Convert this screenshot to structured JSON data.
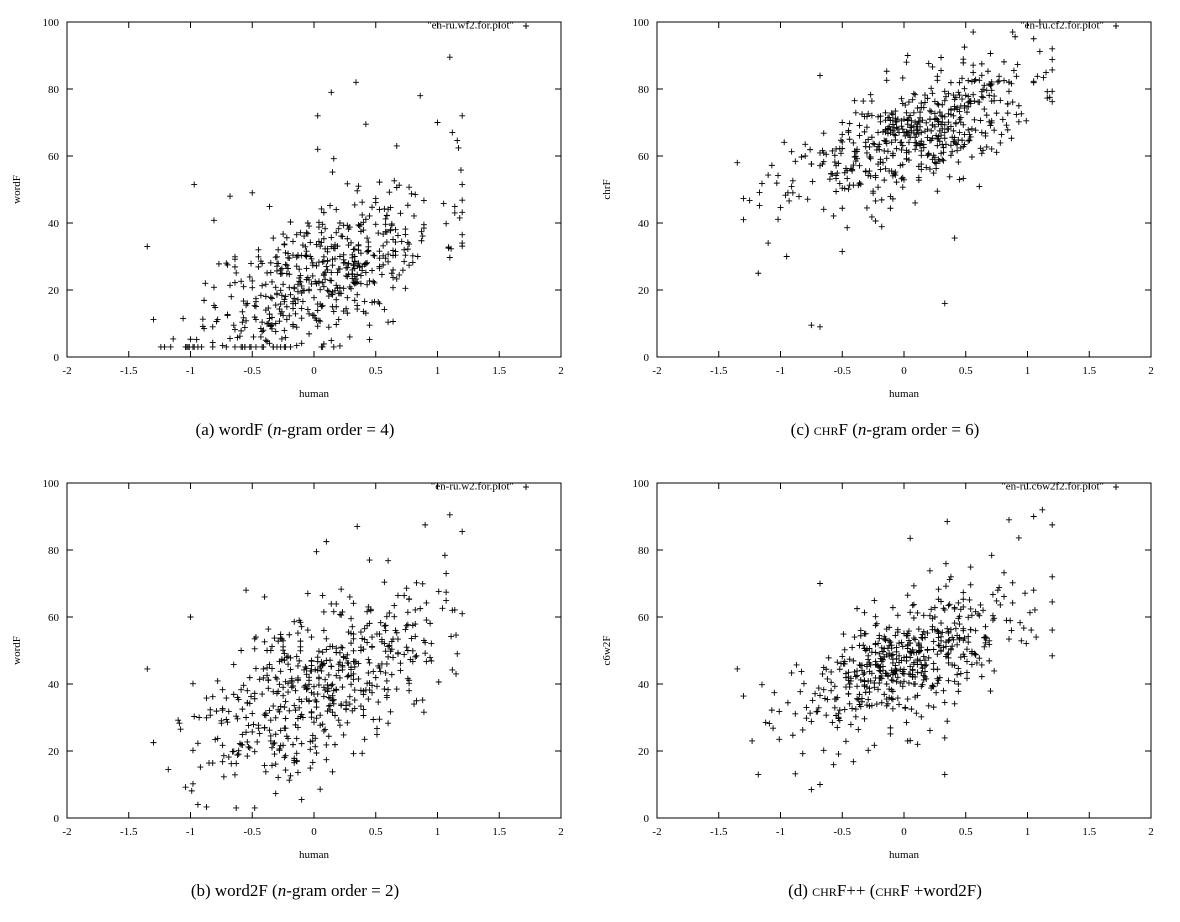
{
  "chart_data": [
    {
      "type": "scatter",
      "id": "a",
      "caption": "(a)  wordF (n-gram order = 4)",
      "caption_parts": [
        "(a)  wordF (",
        "n",
        "-gram order = 4)"
      ],
      "xlabel": "human",
      "ylabel": "wordF",
      "legend": "\"en-ru.wf2.for.plot\"",
      "legend_position": "top-right",
      "xlim": [
        -2,
        2
      ],
      "ylim": [
        0,
        100
      ],
      "xticks": [
        "-2",
        "-1.5",
        "-1",
        "-0.5",
        "0",
        "0.5",
        "1",
        "1.5",
        "2"
      ],
      "yticks": [
        "0",
        "20",
        "40",
        "60",
        "80",
        "100"
      ],
      "seed": 11,
      "n_points": 560,
      "trend": {
        "intercept": 24,
        "slope": 17,
        "spread": 10.5
      },
      "points": [
        [
          -1.35,
          33
        ],
        [
          -0.97,
          51.5
        ],
        [
          0.03,
          72
        ],
        [
          0.03,
          62
        ],
        [
          0.14,
          79
        ],
        [
          0.34,
          82
        ],
        [
          0.42,
          69.5
        ],
        [
          0.86,
          78
        ],
        [
          1.1,
          89.5
        ],
        [
          1.2,
          72
        ],
        [
          1.12,
          67
        ],
        [
          1.0,
          70
        ],
        [
          -0.68,
          48
        ],
        [
          -0.5,
          49
        ]
      ]
    },
    {
      "type": "scatter",
      "id": "c",
      "caption": "(c)  CHRF (n-gram order = 6)",
      "caption_parts": [
        "(c)  ",
        "chrF",
        " (",
        "n",
        "-gram order = 6)"
      ],
      "xlabel": "human",
      "ylabel": "chrF",
      "legend": "\"en-ru.cf2.for.plot\"",
      "legend_position": "top-right",
      "xlim": [
        -2,
        2
      ],
      "ylim": [
        0,
        100
      ],
      "xticks": [
        "-2",
        "-1.5",
        "-1",
        "-0.5",
        "0",
        "0.5",
        "1",
        "1.5",
        "2"
      ],
      "yticks": [
        "0",
        "20",
        "40",
        "60",
        "80",
        "100"
      ],
      "seed": 23,
      "n_points": 560,
      "trend": {
        "intercept": 65,
        "slope": 13,
        "spread": 8
      },
      "points": [
        [
          -0.75,
          9.5
        ],
        [
          -0.68,
          9
        ],
        [
          0.33,
          16
        ],
        [
          -1.18,
          25
        ],
        [
          -1.35,
          58
        ],
        [
          -1.3,
          41
        ],
        [
          -0.68,
          84
        ],
        [
          -1.1,
          34
        ],
        [
          -0.95,
          30
        ],
        [
          0.02,
          88
        ],
        [
          0.88,
          97
        ],
        [
          1.05,
          95
        ],
        [
          1.2,
          92
        ],
        [
          1.1,
          100
        ],
        [
          0.41,
          35.5
        ],
        [
          -0.5,
          31.5
        ]
      ]
    },
    {
      "type": "scatter",
      "id": "b",
      "caption": "(b)  word2F (n-gram order = 2)",
      "caption_parts": [
        "(b)  word2F (",
        "n",
        "-gram order = 2)"
      ],
      "xlabel": "human",
      "ylabel": "wordF",
      "legend": "\"en-ru.w2.for.plot\"",
      "legend_position": "top-right",
      "xlim": [
        -2,
        2
      ],
      "ylim": [
        0,
        100
      ],
      "xticks": [
        "-2",
        "-1.5",
        "-1",
        "-0.5",
        "0",
        "0.5",
        "1",
        "1.5",
        "2"
      ],
      "yticks": [
        "0",
        "20",
        "40",
        "60",
        "80",
        "100"
      ],
      "seed": 37,
      "n_points": 560,
      "trend": {
        "intercept": 40,
        "slope": 17,
        "spread": 11.5
      },
      "points": [
        [
          -1.35,
          44.5
        ],
        [
          -1.0,
          60
        ],
        [
          0.02,
          79.5
        ],
        [
          0.1,
          82.5
        ],
        [
          0.35,
          87
        ],
        [
          0.45,
          77
        ],
        [
          0.9,
          87.5
        ],
        [
          1.1,
          90.5
        ],
        [
          1.2,
          85.5
        ],
        [
          1.15,
          43
        ],
        [
          -0.1,
          5.5
        ],
        [
          -0.55,
          68
        ],
        [
          -0.4,
          66
        ]
      ]
    },
    {
      "type": "scatter",
      "id": "d",
      "caption": "(d)  CHRF++ (CHRF +word2F)",
      "caption_parts": [
        "(d)  ",
        "chrF",
        "++ (",
        "chrF",
        " +word2F)"
      ],
      "xlabel": "human",
      "ylabel": "c6w2F",
      "legend": "\"en-ru.c6w2f2.for.plot\"",
      "legend_position": "top-right",
      "xlim": [
        -2,
        2
      ],
      "ylim": [
        0,
        100
      ],
      "xticks": [
        "-2",
        "-1.5",
        "-1",
        "-0.5",
        "0",
        "0.5",
        "1",
        "1.5",
        "2"
      ],
      "yticks": [
        "0",
        "20",
        "40",
        "60",
        "80",
        "100"
      ],
      "seed": 53,
      "n_points": 560,
      "trend": {
        "intercept": 46,
        "slope": 15,
        "spread": 9
      },
      "points": [
        [
          -1.35,
          44.5
        ],
        [
          -0.75,
          8.5
        ],
        [
          -0.68,
          10
        ],
        [
          0.33,
          13
        ],
        [
          -1.18,
          13
        ],
        [
          -0.68,
          70
        ],
        [
          0.05,
          83.5
        ],
        [
          0.35,
          88.5
        ],
        [
          0.85,
          89
        ],
        [
          1.05,
          90
        ],
        [
          1.12,
          92
        ],
        [
          1.2,
          87.5
        ],
        [
          1.05,
          68
        ]
      ]
    }
  ],
  "colors": {
    "axis": "#000000",
    "marker": "#000000",
    "background": "#ffffff"
  }
}
